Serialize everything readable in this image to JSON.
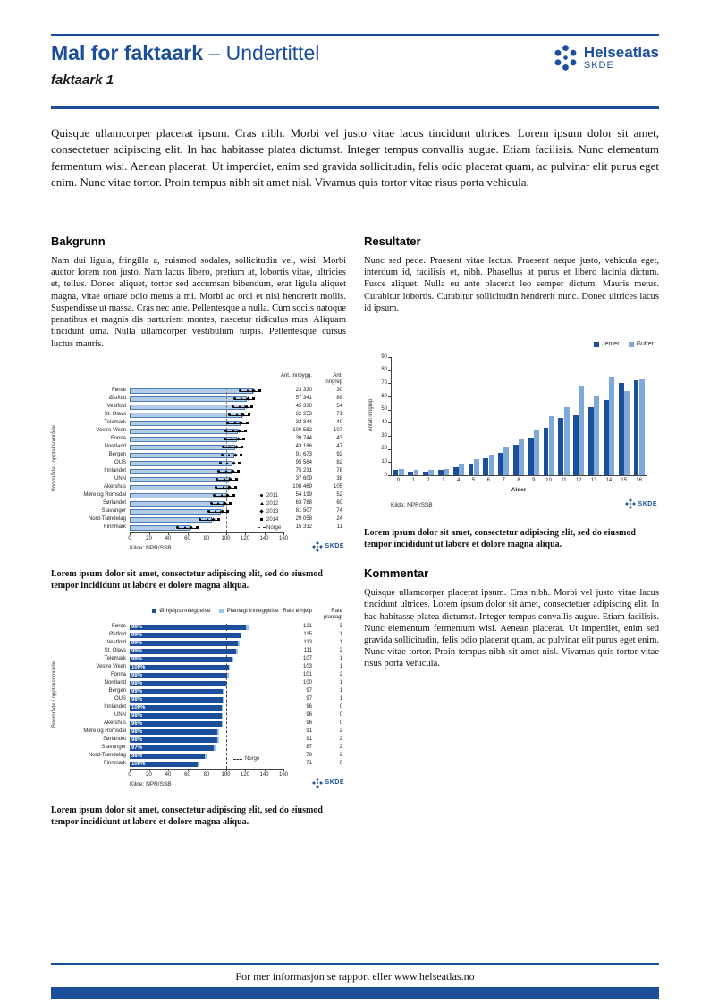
{
  "theme": {
    "brand": "#1b4e9b",
    "bar_light": "#b3cde9",
    "bar_border": "#4d7bb5",
    "bar_dark": "#1b4e9b",
    "bar_mid": "#7fa9d9",
    "planlagt_light": "#9cc2e5",
    "axis": "#444444"
  },
  "page": {
    "title_bold": "Mal for faktaark",
    "title_rest": " – Undertittel",
    "subtitle": "faktaark 1",
    "logo_brand": "Helseatlas",
    "logo_sub": "SKDE",
    "intro": "Quisque ullamcorper placerat ipsum. Cras nibh. Morbi vel justo vitae lacus tincidunt ultrices. Lorem ipsum dolor sit amet, consectetuer adipiscing elit. In hac habitasse platea dictumst. Integer tempus convallis augue. Etiam facilisis. Nunc elementum fermentum wisi. Aenean placerat. Ut imperdiet, enim sed gravida sollicitudin, felis odio placerat quam, ac pulvinar elit purus eget enim. Nunc vitae tortor. Proin tempus nibh sit amet nisl. Vivamus quis tortor vitae risus porta vehicula.",
    "footer": "For mer informasjon se rapport eller www.helseatlas.no"
  },
  "sections": {
    "bakgrunn": {
      "heading": "Bakgrunn",
      "body": "Nam dui ligula, fringilla a, euismod sodales, sollicitudin vel, wisi. Morbi auctor lorem non justo. Nam lacus libero, pretium at, lobortis vitae, ultricies et, tellus. Donec aliquet, tortor sed accumsan bibendum, erat ligula aliquet magna, vitae ornare odio metus a mi. Morbi ac orci et nisl hendrerit mollis. Suspendisse ut massa. Cras nec ante. Pellentesque a nulla. Cum sociis natoque penatibus et magnis dis parturient montes, nascetur ridiculus mus. Aliquam tincidunt urna. Nulla ullamcorper vestibulum turpis. Pellentesque cursus luctus mauris."
    },
    "resultater": {
      "heading": "Resultater",
      "body": "Nunc sed pede. Praesent vitae lectus. Praesent neque justo, vehicula eget, interdum id, facilisis et, nibh. Phasellus at purus et libero lacinia dictum. Fusce aliquet. Nulla eu ante placerat leo semper dictum. Mauris metus. Curabitur lobortis. Curabitur sollicitudin hendrerit nunc. Donec ultrices lacus id ipsum."
    },
    "kommentar": {
      "heading": "Kommentar",
      "body": "Quisque ullamcorper placerat ipsum. Cras nibh. Morbi vel justo vitae lacus tincidunt ultrices. Lorem ipsum dolor sit amet, consectetuer adipiscing elit. In hac habitasse platea dictumst. Integer tempus convallis augue. Etiam facilisis. Nunc elementum fermentum wisi. Aenean placerat. Ut imperdiet, enim sed gravida sollicitudin, felis odio placerat quam, ac pulvinar elit purus eget enim. Nunc vitae tortor. Proin tempus nibh sit amet nisl. Vivamus quis tortor vitae risus porta vehicula."
    }
  },
  "captions": {
    "default": "Lorem ipsum dolor sit amet, consectetur adipiscing elit, sed do eiusmod tempor incididunt ut labore et dolore magna aliqua."
  },
  "chart_data": [
    {
      "type": "bar",
      "orientation": "horizontal",
      "ylabel": "Boområde / opptaksområde",
      "xlim": [
        0,
        160
      ],
      "xticks": [
        0,
        20,
        40,
        60,
        80,
        100,
        120,
        140,
        160
      ],
      "reference": 100,
      "categories": [
        "Førde",
        "Østfold",
        "Vestfold",
        "St. Olavs",
        "Telemark",
        "Vestre Viken",
        "Fonna",
        "Nordland",
        "Bergen",
        "OUS",
        "Innlandet",
        "UNN",
        "Akershus",
        "Møre og Romsdal",
        "Sørlandet",
        "Stavanger",
        "Nord-Trøndelag",
        "Finnmark"
      ],
      "values": [
        128,
        122,
        120,
        117,
        115,
        113,
        112,
        110,
        109,
        107,
        106,
        104,
        103,
        101,
        98,
        95,
        86,
        63
      ],
      "col_headers": [
        "Ant. innbygg.",
        "Ant. inngrep"
      ],
      "ant_innbygg": [
        "23 330",
        "57 341",
        "45 330",
        "62 253",
        "33 344",
        "100 582",
        "39 744",
        "43 186",
        "91 673",
        "95 564",
        "75 231",
        "37 609",
        "108 469",
        "54 199",
        "63 788",
        "81 507",
        "29 058",
        "15 332"
      ],
      "ant_inngrep": [
        "30",
        "89",
        "54",
        "71",
        "40",
        "107",
        "43",
        "47",
        "92",
        "82",
        "78",
        "38",
        "105",
        "52",
        "60",
        "74",
        "24",
        "11"
      ],
      "legend_years": [
        "2011",
        "2012",
        "2013",
        "2014"
      ],
      "legend_norge": "Norge",
      "source": "Kilde: NPR/SSB"
    },
    {
      "type": "bar",
      "orientation": "vertical",
      "ylabel": "Antall inngrep",
      "xlabel": "Alder",
      "ylim": [
        0,
        90
      ],
      "yticks": [
        0,
        10,
        20,
        30,
        40,
        50,
        60,
        70,
        80,
        90
      ],
      "categories": [
        "0",
        "1",
        "2",
        "3",
        "4",
        "5",
        "6",
        "7",
        "8",
        "9",
        "10",
        "11",
        "12",
        "13",
        "14",
        "15",
        "16"
      ],
      "series": [
        {
          "name": "Jenter",
          "color": "#1b4e9b",
          "values": [
            4,
            3,
            3,
            4,
            6,
            9,
            13,
            17,
            23,
            29,
            36,
            44,
            46,
            52,
            57,
            70,
            72
          ]
        },
        {
          "name": "Gutter",
          "color": "#7fa9d9",
          "values": [
            5,
            4,
            4,
            5,
            8,
            12,
            16,
            21,
            28,
            35,
            45,
            52,
            68,
            60,
            75,
            64,
            73
          ]
        }
      ],
      "source": "Kilde: NPR/SSB"
    },
    {
      "type": "bar",
      "orientation": "horizontal-stacked",
      "ylabel": "Boområde / opptaksområde",
      "xlim": [
        0,
        160
      ],
      "xticks": [
        0,
        20,
        40,
        60,
        80,
        100,
        120,
        140,
        160
      ],
      "reference": 100,
      "legend": [
        "Ø-hjelpsinnleggelse",
        "Planlagt innleggelse"
      ],
      "legend_norge": "Norge",
      "categories": [
        "Førde",
        "Østfold",
        "Vestfold",
        "St. Olavs",
        "Telemark",
        "Vestre Viken",
        "Fonna",
        "Nordland",
        "Bergen",
        "OUS",
        "Innlandet",
        "UNN",
        "Akershus",
        "Møre og Romsdal",
        "Sørlandet",
        "Stavanger",
        "Nord-Trøndelag",
        "Finnmark"
      ],
      "pct": [
        "98%",
        "99%",
        "99%",
        "99%",
        "98%",
        "100%",
        "98%",
        "98%",
        "99%",
        "98%",
        "100%",
        "98%",
        "96%",
        "98%",
        "98%",
        "97%",
        "98%",
        "100%"
      ],
      "rate_ohjelp": [
        121,
        115,
        113,
        111,
        107,
        103,
        101,
        100,
        97,
        97,
        96,
        96,
        96,
        91,
        91,
        87,
        78,
        71
      ],
      "rate_planlagt": [
        3,
        1,
        1,
        2,
        1,
        1,
        2,
        1,
        1,
        1,
        0,
        0,
        0,
        2,
        2,
        2,
        2,
        0
      ],
      "col_headers": [
        "Rate ø-hjelp",
        "Rate planlagt"
      ],
      "source": "Kilde: NPR/SSB"
    }
  ]
}
